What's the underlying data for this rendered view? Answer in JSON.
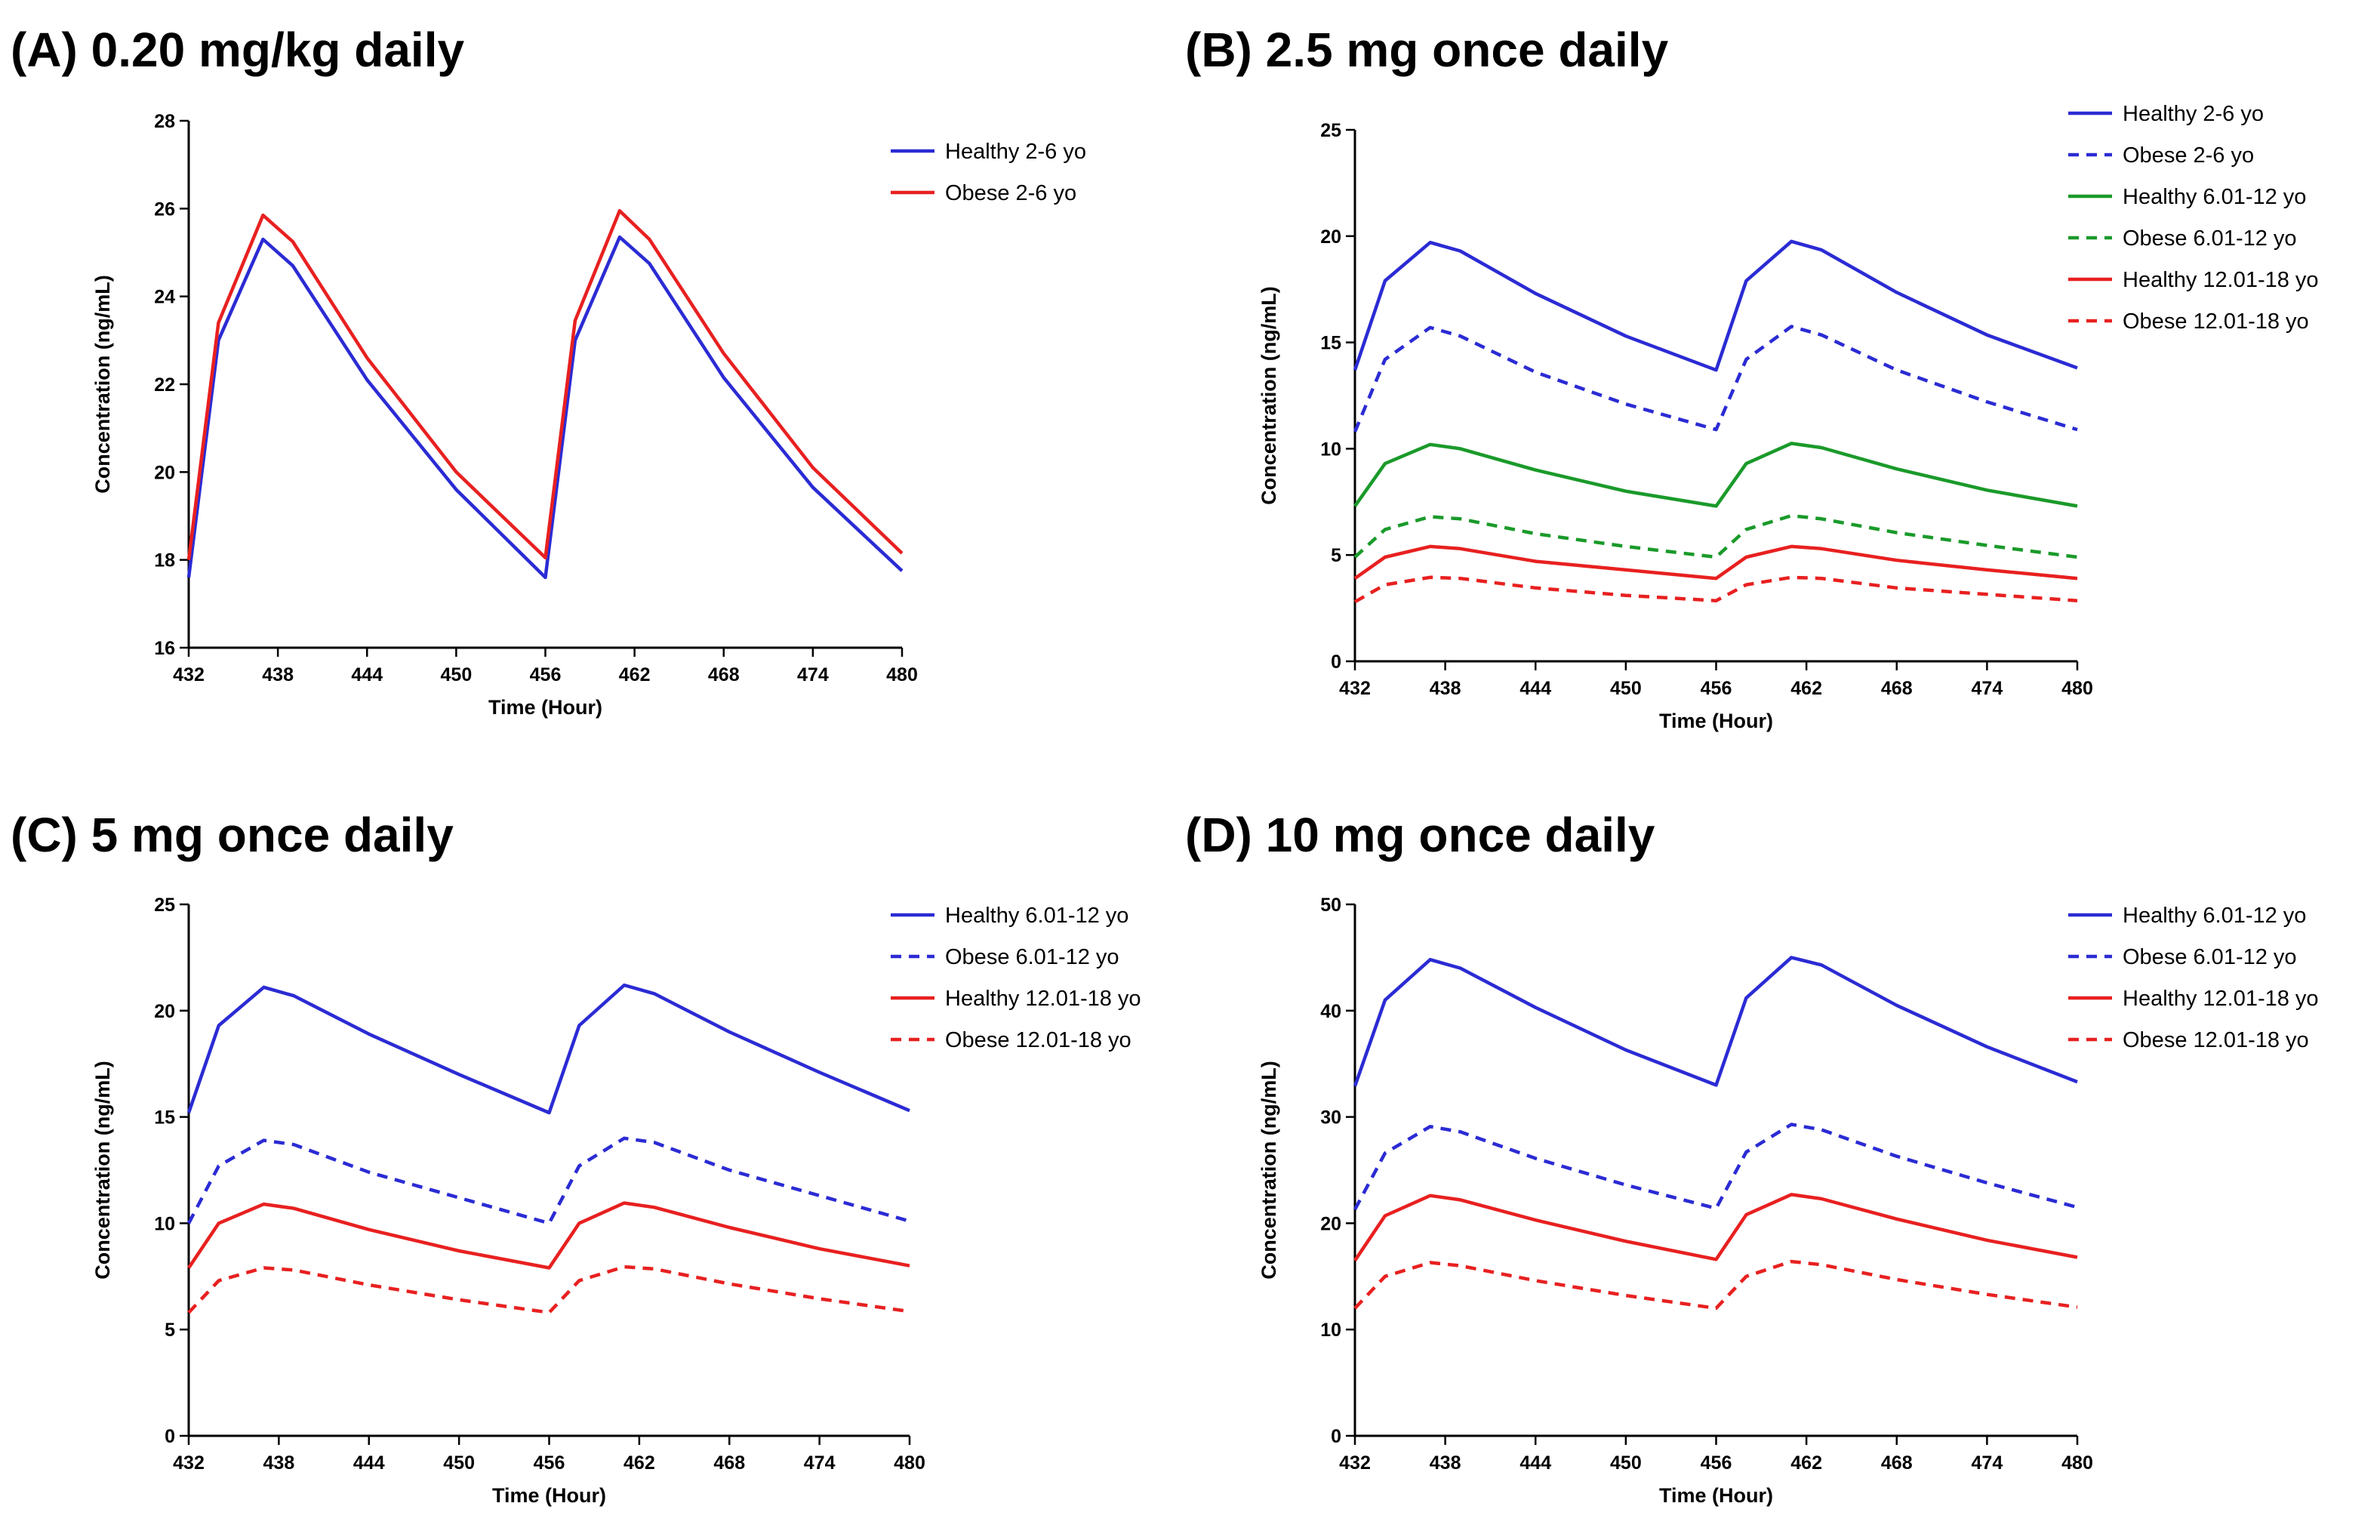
{
  "chart_data": [
    {
      "type": "line",
      "title": "(A) 0.20 mg/kg daily",
      "xlabel": "Time (Hour)",
      "ylabel": "Concentration (ng/mL)",
      "xlim": [
        432,
        480
      ],
      "ylim": [
        16,
        28
      ],
      "xticks": [
        432,
        438,
        444,
        450,
        456,
        462,
        468,
        474,
        480
      ],
      "yticks": [
        16,
        18,
        20,
        22,
        24,
        26,
        28
      ],
      "x": [
        432,
        434,
        437,
        439,
        444,
        450,
        456,
        458,
        461,
        463,
        468,
        474,
        480
      ],
      "legend_position": "top-right",
      "series": [
        {
          "name": "Healthy 2-6 yo",
          "color": "#2b2bd4",
          "dash": "solid",
          "values": [
            17.6,
            23.0,
            25.3,
            24.7,
            22.1,
            19.6,
            17.6,
            23.0,
            25.35,
            24.75,
            22.15,
            19.65,
            17.75
          ]
        },
        {
          "name": "Obese 2-6 yo",
          "color": "#e82020",
          "dash": "solid",
          "values": [
            18.0,
            23.4,
            25.85,
            25.25,
            22.6,
            20.0,
            18.05,
            23.45,
            25.95,
            25.3,
            22.7,
            20.1,
            18.15
          ]
        }
      ]
    },
    {
      "type": "line",
      "title": "(B) 2.5 mg once daily",
      "xlabel": "Time (Hour)",
      "ylabel": "Concentration (ng/mL)",
      "xlim": [
        432,
        480
      ],
      "ylim": [
        0,
        25
      ],
      "xticks": [
        432,
        438,
        444,
        450,
        456,
        462,
        468,
        474,
        480
      ],
      "yticks": [
        0,
        5,
        10,
        15,
        20,
        25
      ],
      "x": [
        432,
        434,
        437,
        439,
        444,
        450,
        456,
        458,
        461,
        463,
        468,
        474,
        480
      ],
      "legend_position": "top-right",
      "series": [
        {
          "name": "Healthy 2-6 yo",
          "color": "#2b2bd4",
          "dash": "solid",
          "values": [
            13.7,
            17.9,
            19.7,
            19.3,
            17.3,
            15.3,
            13.7,
            17.9,
            19.75,
            19.35,
            17.35,
            15.35,
            13.8
          ]
        },
        {
          "name": "Obese 2-6 yo",
          "color": "#2b2bd4",
          "dash": "dashed",
          "values": [
            10.8,
            14.2,
            15.7,
            15.3,
            13.6,
            12.1,
            10.9,
            14.2,
            15.75,
            15.35,
            13.7,
            12.2,
            10.9
          ]
        },
        {
          "name": "Healthy 6.01-12 yo",
          "color": "#1a9a2a",
          "dash": "solid",
          "values": [
            7.3,
            9.3,
            10.2,
            10.0,
            9.0,
            8.0,
            7.3,
            9.3,
            10.25,
            10.05,
            9.05,
            8.05,
            7.3
          ]
        },
        {
          "name": "Obese 6.01-12 yo",
          "color": "#1a9a2a",
          "dash": "dashed",
          "values": [
            4.9,
            6.2,
            6.8,
            6.7,
            6.0,
            5.4,
            4.9,
            6.2,
            6.85,
            6.7,
            6.05,
            5.45,
            4.9
          ]
        },
        {
          "name": "Healthy 12.01-18 yo",
          "color": "#e82020",
          "dash": "solid",
          "values": [
            3.9,
            4.9,
            5.4,
            5.3,
            4.7,
            4.3,
            3.9,
            4.9,
            5.4,
            5.3,
            4.75,
            4.3,
            3.9
          ]
        },
        {
          "name": "Obese 12.01-18 yo",
          "color": "#e82020",
          "dash": "dashed",
          "values": [
            2.8,
            3.6,
            3.95,
            3.9,
            3.45,
            3.1,
            2.85,
            3.6,
            3.95,
            3.9,
            3.45,
            3.15,
            2.85
          ]
        }
      ]
    },
    {
      "type": "line",
      "title": "(C) 5 mg once daily",
      "xlabel": "Time (Hour)",
      "ylabel": "Concentration (ng/mL)",
      "xlim": [
        432,
        480
      ],
      "ylim": [
        0,
        25
      ],
      "xticks": [
        432,
        438,
        444,
        450,
        456,
        462,
        468,
        474,
        480
      ],
      "yticks": [
        0,
        5,
        10,
        15,
        20,
        25
      ],
      "x": [
        432,
        434,
        437,
        439,
        444,
        450,
        456,
        458,
        461,
        463,
        468,
        474,
        480
      ],
      "legend_position": "top-right",
      "series": [
        {
          "name": "Healthy 6.01-12 yo",
          "color": "#2b2bd4",
          "dash": "solid",
          "values": [
            15.2,
            19.3,
            21.1,
            20.7,
            18.9,
            17.0,
            15.2,
            19.3,
            21.2,
            20.8,
            19.0,
            17.1,
            15.3
          ]
        },
        {
          "name": "Obese 6.01-12 yo",
          "color": "#2b2bd4",
          "dash": "dashed",
          "values": [
            10.0,
            12.7,
            13.9,
            13.7,
            12.4,
            11.2,
            10.0,
            12.7,
            14.0,
            13.8,
            12.5,
            11.3,
            10.1
          ]
        },
        {
          "name": "Healthy 12.01-18 yo",
          "color": "#e82020",
          "dash": "solid",
          "values": [
            7.9,
            10.0,
            10.9,
            10.7,
            9.7,
            8.7,
            7.9,
            10.0,
            10.95,
            10.75,
            9.8,
            8.8,
            8.0
          ]
        },
        {
          "name": "Obese 12.01-18 yo",
          "color": "#e82020",
          "dash": "dashed",
          "values": [
            5.8,
            7.3,
            7.9,
            7.8,
            7.1,
            6.4,
            5.8,
            7.3,
            7.95,
            7.85,
            7.15,
            6.45,
            5.85
          ]
        }
      ]
    },
    {
      "type": "line",
      "title": "(D) 10 mg once daily",
      "xlabel": "Time (Hour)",
      "ylabel": "Concentration (ng/mL)",
      "xlim": [
        432,
        480
      ],
      "ylim": [
        0,
        50
      ],
      "xticks": [
        432,
        438,
        444,
        450,
        456,
        462,
        468,
        474,
        480
      ],
      "yticks": [
        0,
        10,
        20,
        30,
        40,
        50
      ],
      "x": [
        432,
        434,
        437,
        439,
        444,
        450,
        456,
        458,
        461,
        463,
        468,
        474,
        480
      ],
      "legend_position": "top-right",
      "series": [
        {
          "name": "Healthy 6.01-12 yo",
          "color": "#2b2bd4",
          "dash": "solid",
          "values": [
            32.9,
            41.0,
            44.8,
            44.0,
            40.3,
            36.3,
            33.0,
            41.2,
            45.0,
            44.3,
            40.5,
            36.6,
            33.3
          ]
        },
        {
          "name": "Obese 6.01-12 yo",
          "color": "#2b2bd4",
          "dash": "dashed",
          "values": [
            21.3,
            26.6,
            29.1,
            28.6,
            26.1,
            23.6,
            21.4,
            26.7,
            29.3,
            28.8,
            26.3,
            23.8,
            21.5
          ]
        },
        {
          "name": "Healthy 12.01-18 yo",
          "color": "#e82020",
          "dash": "solid",
          "values": [
            16.5,
            20.7,
            22.6,
            22.2,
            20.3,
            18.3,
            16.6,
            20.8,
            22.7,
            22.3,
            20.4,
            18.4,
            16.8
          ]
        },
        {
          "name": "Obese 12.01-18 yo",
          "color": "#e82020",
          "dash": "dashed",
          "values": [
            12.0,
            15.0,
            16.3,
            16.0,
            14.6,
            13.2,
            12.0,
            15.0,
            16.4,
            16.1,
            14.7,
            13.3,
            12.1
          ]
        }
      ]
    }
  ]
}
